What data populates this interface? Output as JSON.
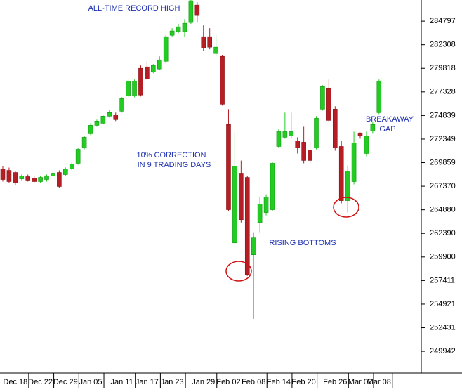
{
  "chart_data": {
    "type": "candlestick",
    "annotations": [
      "ALL-TIME RECORD HIGH",
      "10% CORRECTION",
      "IN 9 TRADING DAYS",
      "RISING BOTTOMS",
      "BREAKAWAY",
      "GAP"
    ],
    "categories": [
      null,
      null,
      "Dec 18",
      null,
      null,
      null,
      "Dec 22",
      null,
      null,
      null,
      "Dec 29",
      null,
      null,
      null,
      "Jan 05",
      null,
      null,
      null,
      null,
      "Jan 11",
      null,
      null,
      null,
      "Jan 17",
      null,
      null,
      null,
      "Jan 23",
      null,
      null,
      null,
      null,
      "Jan 29",
      null,
      null,
      null,
      "Feb 02",
      null,
      null,
      null,
      "Feb 08",
      null,
      null,
      null,
      "Feb 14",
      null,
      null,
      null,
      "Feb 20",
      null,
      null,
      null,
      null,
      "Feb 26",
      null,
      null,
      null,
      "Mar 02",
      null,
      null,
      "Mar 08"
    ],
    "open": [
      269190,
      269040,
      268820,
      268150,
      268380,
      268230,
      267860,
      268080,
      268450,
      268820,
      268600,
      269190,
      269790,
      271420,
      272910,
      273800,
      274020,
      274770,
      274920,
      275290,
      276920,
      276920,
      279820,
      279970,
      279450,
      279750,
      280560,
      283310,
      283680,
      283680,
      284650,
      286500,
      283160,
      283160,
      281380,
      281080,
      273880,
      261390,
      268750,
      268300,
      260130,
      263550,
      264590,
      264890,
      271570,
      272540,
      272680,
      272170,
      272020,
      271200,
      271420,
      275510,
      277740,
      275510,
      271570,
      265850,
      267860,
      272910,
      270830,
      273210,
      275140
    ],
    "high": [
      269490,
      269340,
      269000,
      268600,
      268600,
      268450,
      268450,
      268600,
      269050,
      269050,
      269350,
      269860,
      271420,
      272680,
      274020,
      274400,
      274920,
      275430,
      275140,
      276770,
      278630,
      278630,
      280120,
      280560,
      280270,
      281080,
      283310,
      284050,
      284500,
      285000,
      287020,
      286800,
      284350,
      284050,
      283310,
      281230,
      275510,
      273130,
      270080,
      268450,
      262510,
      266220,
      266520,
      269940,
      273430,
      275140,
      275140,
      272540,
      273650,
      272090,
      274770,
      278040,
      278630,
      275810,
      272170,
      269560,
      273130,
      273060,
      273130,
      274170,
      278630
    ],
    "low": [
      267860,
      267710,
      267500,
      268000,
      267860,
      267700,
      267710,
      267860,
      268300,
      267200,
      268450,
      269050,
      269640,
      271270,
      272760,
      273650,
      273880,
      274620,
      274250,
      275140,
      276770,
      276770,
      276850,
      278560,
      279300,
      279600,
      280410,
      283160,
      283530,
      283160,
      284500,
      284650,
      281680,
      281830,
      281080,
      275880,
      264740,
      261240,
      263540,
      257900,
      253370,
      262510,
      264290,
      264740,
      271420,
      272390,
      272390,
      270830,
      269790,
      269790,
      271270,
      275360,
      274170,
      271120,
      265560,
      264590,
      267560,
      272390,
      270530,
      272910,
      274990
    ],
    "close": [
      268080,
      267860,
      267710,
      268450,
      268010,
      267860,
      268300,
      268450,
      268750,
      267340,
      269190,
      269710,
      271270,
      272540,
      273800,
      274250,
      274770,
      275140,
      274400,
      276620,
      278480,
      278480,
      277000,
      278700,
      280120,
      280710,
      283160,
      283760,
      284200,
      284570,
      286950,
      285390,
      281970,
      282050,
      282050,
      276030,
      264890,
      269490,
      263840,
      258050,
      261910,
      265480,
      266220,
      269790,
      273130,
      273130,
      273130,
      271420,
      270090,
      270090,
      274540,
      277890,
      274320,
      271420,
      265850,
      268970,
      271940,
      272690,
      272690,
      273880,
      278480
    ],
    "up_color": "#22cc22",
    "down_color": "#b51e24",
    "ylim": [
      247650,
      287030
    ],
    "yticks": [
      284797,
      282308,
      279818,
      277328,
      274839,
      272349,
      269859,
      267370,
      264880,
      262390,
      259900,
      257411,
      254921,
      252431,
      249942
    ]
  }
}
